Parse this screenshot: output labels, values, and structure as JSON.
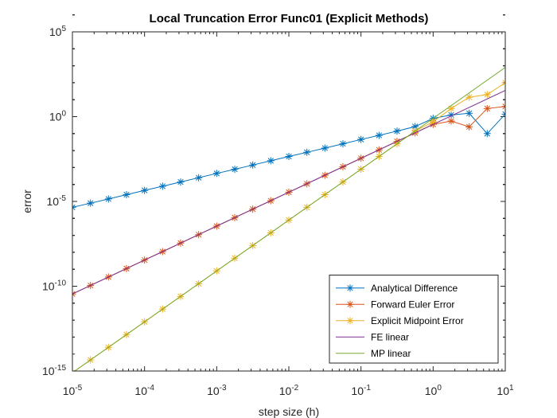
{
  "chart_data": {
    "type": "line",
    "title": "Local Truncation Error Func01 (Explicit Methods)",
    "xlabel": "step size (h)",
    "ylabel": "error",
    "x_scale": "log",
    "y_scale": "log",
    "xlim": [
      1e-05,
      10
    ],
    "ylim": [
      1e-15,
      100000
    ],
    "legend_position": "bottom-right",
    "grid": false,
    "x_ticks": [
      {
        "base": "10",
        "exp": "-5",
        "value": 1e-05
      },
      {
        "base": "10",
        "exp": "-4",
        "value": 0.0001
      },
      {
        "base": "10",
        "exp": "-3",
        "value": 0.001
      },
      {
        "base": "10",
        "exp": "-2",
        "value": 0.01
      },
      {
        "base": "10",
        "exp": "-1",
        "value": 0.1
      },
      {
        "base": "10",
        "exp": "0",
        "value": 1
      },
      {
        "base": "10",
        "exp": "1",
        "value": 10
      }
    ],
    "y_ticks": [
      {
        "base": "10",
        "exp": "-15",
        "value": 1e-15
      },
      {
        "base": "10",
        "exp": "-10",
        "value": 1e-10
      },
      {
        "base": "10",
        "exp": "-5",
        "value": 1e-05
      },
      {
        "base": "10",
        "exp": "0",
        "value": 1
      },
      {
        "base": "10",
        "exp": "5",
        "value": 100000
      }
    ],
    "x": [
      1e-05,
      1.78e-05,
      3.16e-05,
      5.62e-05,
      0.0001,
      0.000178,
      0.000316,
      0.000562,
      0.001,
      0.00178,
      0.00316,
      0.00562,
      0.01,
      0.0178,
      0.0316,
      0.0562,
      0.1,
      0.178,
      0.316,
      0.562,
      1,
      1.78,
      3.16,
      5.62,
      10
    ],
    "series": [
      {
        "name": "Analytical Difference",
        "color": "#0072BD",
        "marker": "asterisk",
        "values": [
          4.5e-06,
          7.9e-06,
          1.4e-05,
          2.5e-05,
          4.5e-05,
          7.9e-05,
          0.00014,
          0.00025,
          0.00045,
          0.00079,
          0.0014,
          0.0025,
          0.0045,
          0.0079,
          0.014,
          0.025,
          0.045,
          0.079,
          0.14,
          0.26,
          0.79,
          1.26,
          1.58,
          0.1,
          1.41
        ]
      },
      {
        "name": "Forward Euler Error",
        "color": "#D95319",
        "marker": "asterisk",
        "values": [
          3.5e-11,
          1.1e-10,
          3.5e-10,
          1.1e-09,
          3.5e-09,
          1.1e-08,
          3.5e-08,
          1.1e-07,
          3.5e-07,
          1.1e-06,
          3.5e-06,
          1.1e-05,
          3.5e-05,
          0.00011,
          0.00035,
          0.0011,
          0.0035,
          0.011,
          0.035,
          0.11,
          0.35,
          0.55,
          0.25,
          3.0,
          4.0
        ]
      },
      {
        "name": "Explicit Midpoint Error",
        "color": "#EDB120",
        "marker": "asterisk",
        "values": [
          8e-16,
          4.5e-15,
          2.5e-14,
          1.4e-13,
          8e-13,
          4.5e-12,
          2.5e-11,
          1.4e-10,
          8e-10,
          4.5e-09,
          2.5e-08,
          1.4e-07,
          8e-07,
          4.5e-06,
          2.5e-05,
          0.00014,
          0.0008,
          0.0045,
          0.025,
          0.14,
          0.5,
          3.0,
          14,
          20,
          100
        ]
      },
      {
        "name": "FE linear",
        "color": "#7E2F8E",
        "marker": "none",
        "x": [
          1e-05,
          10
        ],
        "values": [
          3.5e-11,
          35
        ]
      },
      {
        "name": "MP linear",
        "color": "#77AC30",
        "marker": "none",
        "x": [
          1e-05,
          10
        ],
        "values": [
          8e-16,
          800
        ]
      }
    ]
  }
}
